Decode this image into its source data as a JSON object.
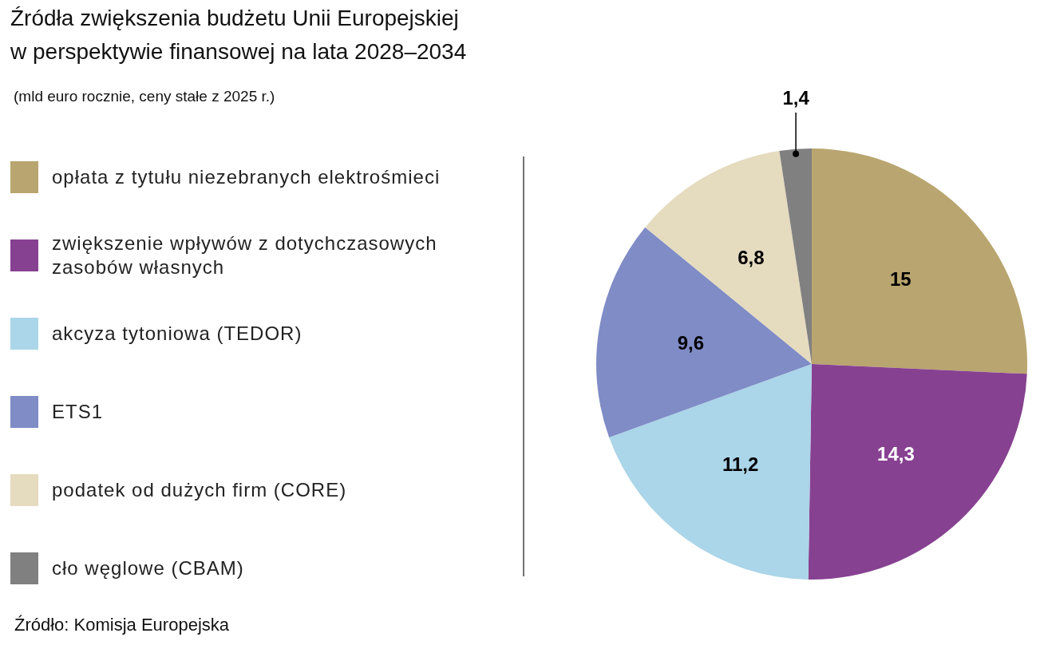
{
  "chart_data": {
    "type": "pie",
    "title": "Źródła zwiększenia budżetu Unii Europejskiej w perspektywie finansowej na lata 2028–2034",
    "subtitle": "(mld euro rocznie, ceny stałe z 2025 r.)",
    "categories": [
      "opłata z tytułu niezebranych elektrośmieci",
      "zwiększenie wpływów z dotychczasowych zasobów własnych",
      "akcyza tytoniowa (TEDOR)",
      "ETS1",
      "podatek od dużych firm (CORE)",
      "cło węglowe (CBAM)"
    ],
    "values": [
      15,
      14.3,
      11.2,
      9.6,
      6.8,
      1.4
    ],
    "colors": [
      "#b9a56f",
      "#874191",
      "#abd5e8",
      "#7f8cc6",
      "#e5dbbf",
      "#808080"
    ],
    "value_labels": [
      "15",
      "14,3",
      "11,2",
      "9,6",
      "6,8",
      "1,4"
    ],
    "legend": "left",
    "annotations": [
      "Źródło: Komisja Europejska"
    ]
  }
}
